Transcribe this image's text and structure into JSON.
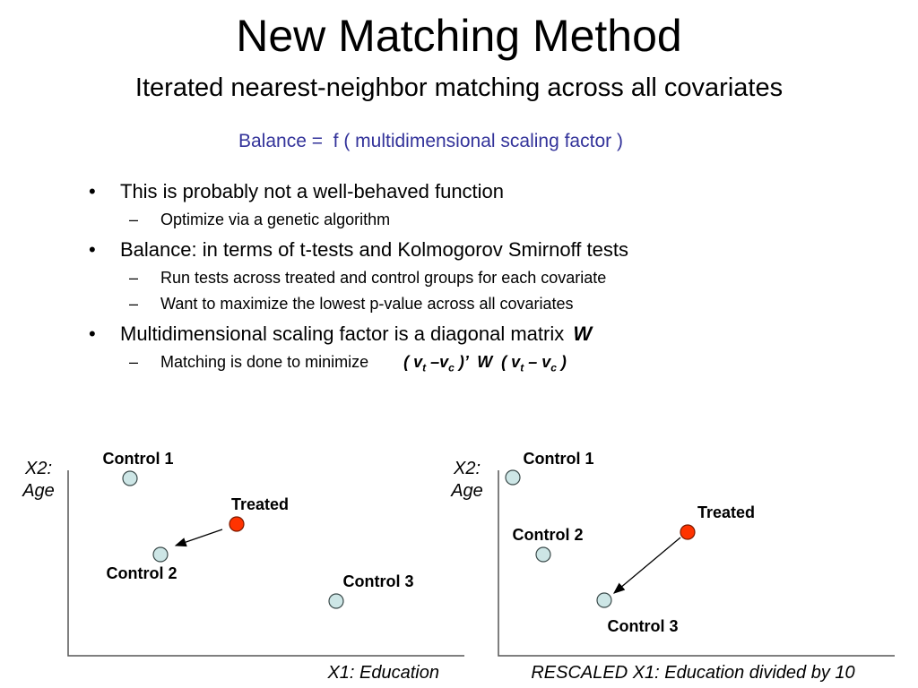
{
  "slide": {
    "title": "New Matching Method",
    "subtitle": "Iterated nearest-neighbor matching across all covariates",
    "formula": "Balance =  f ( multidimensional scaling factor )",
    "bullets": [
      {
        "text": "This is probably not a well-behaved function",
        "subs": [
          "Optimize via a genetic algorithm"
        ]
      },
      {
        "text": "Balance: in terms of t-tests and Kolmogorov Smirnoff tests",
        "subs": [
          "Run tests across treated and control groups for each covariate",
          "Want to maximize the lowest p-value across all covariates"
        ]
      },
      {
        "text": "Multidimensional scaling factor is a diagonal matrix",
        "emph": "W",
        "subs": [
          "Matching is done to minimize"
        ]
      }
    ],
    "math": {
      "open": "( v",
      "t1": "t",
      "minus1": " –v",
      "c1": "c",
      "mid": " )’  W  ( v",
      "t2": "t",
      "minus2": " – v",
      "c2": "c",
      "close": " )"
    },
    "bullet_marker": "•",
    "sub_marker": "–"
  },
  "plots": [
    {
      "y_label_line1": "X2:",
      "y_label_line2": "Age",
      "x_label": "X1: Education",
      "points": [
        {
          "label": "Control 1",
          "kind": "control"
        },
        {
          "label": "Treated",
          "kind": "treated"
        },
        {
          "label": "Control 2",
          "kind": "control"
        },
        {
          "label": "Control 3",
          "kind": "control"
        }
      ]
    },
    {
      "y_label_line1": "X2:",
      "y_label_line2": "Age",
      "x_label": "RESCALED X1: Education divided by 10",
      "points": [
        {
          "label": "Control 1",
          "kind": "control"
        },
        {
          "label": "Treated",
          "kind": "treated"
        },
        {
          "label": "Control 2",
          "kind": "control"
        },
        {
          "label": "Control 3",
          "kind": "control"
        }
      ]
    }
  ],
  "colors": {
    "control_fill": "#cde6e6",
    "treated_fill": "#ff3300",
    "formula_text": "#33339a",
    "axis": "#555555"
  }
}
